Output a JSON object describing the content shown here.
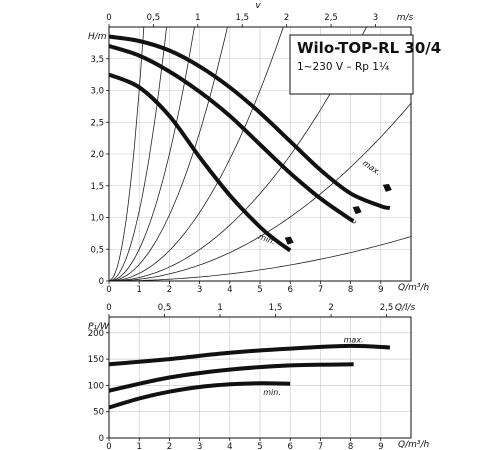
{
  "header": {
    "title": "Wilo-TOP-RL 30/4",
    "subtitle": "1~230 V – Rp 1¼"
  },
  "chart_data": [
    {
      "type": "line",
      "name": "pump-curve",
      "xlabel": "Q/m³/h",
      "ylabel": "H/m",
      "top_axis": {
        "label": "v",
        "unit": "m/s",
        "ticks": [
          0,
          0.5,
          1,
          1.5,
          2,
          2.5,
          3
        ],
        "tick_labels": [
          "0",
          "0,5",
          "1",
          "1,5",
          "2",
          "2,5",
          "3"
        ],
        "range": [
          0,
          3.4
        ]
      },
      "x_ticks": [
        0,
        1,
        2,
        3,
        4,
        5,
        6,
        7,
        8,
        9
      ],
      "x_tick_labels": [
        "0",
        "1",
        "2",
        "3",
        "4",
        "5",
        "6",
        "7",
        "8",
        "9"
      ],
      "y_ticks": [
        0,
        0.5,
        1.0,
        1.5,
        2.0,
        2.5,
        3.0,
        3.5
      ],
      "y_tick_labels": [
        "0",
        "0,5",
        "1,0",
        "1,5",
        "2,0",
        "2,5",
        "3,0",
        "3,5"
      ],
      "xlim": [
        0,
        10
      ],
      "ylim": [
        0,
        4
      ],
      "grid": true,
      "series": [
        {
          "x": [
            0,
            1,
            2,
            3,
            4,
            5,
            6,
            7,
            8,
            9,
            9.3
          ],
          "y": [
            3.85,
            3.78,
            3.63,
            3.38,
            3.05,
            2.65,
            2.2,
            1.75,
            1.38,
            1.18,
            1.15
          ]
        },
        {
          "x": [
            0,
            1,
            2,
            3,
            4,
            5,
            6,
            7,
            8,
            8.1
          ],
          "y": [
            3.7,
            3.55,
            3.3,
            2.98,
            2.6,
            2.15,
            1.7,
            1.3,
            0.97,
            0.95
          ]
        },
        {
          "x": [
            0,
            1,
            2,
            3,
            4,
            5,
            5.5,
            6
          ],
          "y": [
            3.25,
            3.05,
            2.6,
            1.95,
            1.35,
            0.85,
            0.65,
            0.48
          ]
        }
      ],
      "system_curves_k": [
        3.0,
        1.1,
        0.5,
        0.26,
        0.12,
        0.055,
        0.028,
        0.007
      ],
      "annotations": [
        {
          "text": "max.",
          "x": 8.65,
          "y": 1.75
        },
        {
          "text": "min.",
          "x": 5.2,
          "y": 0.62
        }
      ]
    },
    {
      "type": "line",
      "name": "power-curve",
      "xlabel": "Q/m³/h",
      "ylabel": "P₁/W",
      "top_axis": {
        "unit": "Q/l/s",
        "ticks": [
          0,
          0.5,
          1,
          1.5,
          2,
          2.5
        ],
        "tick_labels": [
          "0",
          "0,5",
          "1",
          "1,5",
          "2",
          "2,5"
        ],
        "range": [
          0,
          2.72
        ]
      },
      "x_ticks": [
        0,
        1,
        2,
        3,
        4,
        5,
        6,
        7,
        8,
        9
      ],
      "x_tick_labels": [
        "0",
        "1",
        "2",
        "3",
        "4",
        "5",
        "6",
        "7",
        "8",
        "9"
      ],
      "y_ticks": [
        0,
        50,
        100,
        150,
        200
      ],
      "y_tick_labels": [
        "0",
        "50",
        "100",
        "150",
        "200"
      ],
      "xlim": [
        0,
        10
      ],
      "ylim": [
        0,
        230
      ],
      "grid": true,
      "series": [
        {
          "x": [
            0,
            2,
            4,
            6,
            8,
            9.3
          ],
          "y": [
            140,
            150,
            162,
            170,
            175,
            172
          ]
        },
        {
          "x": [
            0,
            2,
            4,
            6,
            8.1
          ],
          "y": [
            90,
            115,
            130,
            138,
            140
          ]
        },
        {
          "x": [
            0,
            1,
            2,
            3,
            4,
            5,
            6
          ],
          "y": [
            58,
            75,
            88,
            97,
            102,
            104,
            103
          ]
        }
      ],
      "annotations": [
        {
          "text": "max.",
          "x": 8.1,
          "y": 182
        },
        {
          "text": "min.",
          "x": 5.4,
          "y": 82
        }
      ]
    }
  ]
}
